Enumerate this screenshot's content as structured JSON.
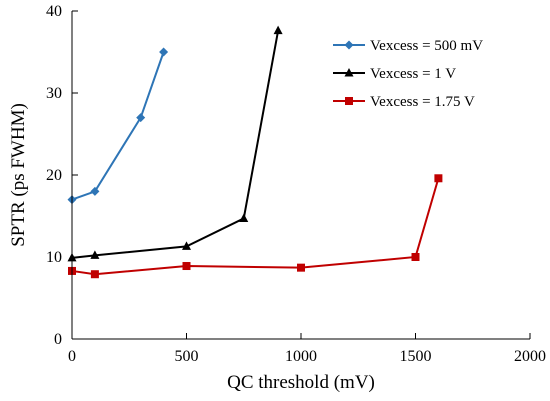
{
  "chart_data": {
    "type": "line",
    "title": "",
    "xlabel": "QC threshold (mV)",
    "ylabel": "SPTR  (ps FWHM)",
    "xlim": [
      0,
      2000
    ],
    "ylim": [
      0,
      40
    ],
    "x_ticks": [
      0,
      500,
      1000,
      1500,
      2000
    ],
    "y_ticks": [
      0,
      10,
      20,
      30,
      40
    ],
    "grid": false,
    "legend_position": "top-right",
    "series": [
      {
        "name": "Vexcess = 500 mV",
        "color": "#2e75b6",
        "marker": "diamond",
        "x": [
          0,
          100,
          300,
          400
        ],
        "y": [
          17.0,
          18.0,
          27.0,
          35.0
        ]
      },
      {
        "name": "Vexcess = 1 V",
        "color": "#000000",
        "marker": "triangle",
        "x": [
          0,
          100,
          500,
          750,
          900
        ],
        "y": [
          9.9,
          10.2,
          11.3,
          14.7,
          37.6
        ]
      },
      {
        "name": "Vexcess = 1.75 V",
        "color": "#c00000",
        "marker": "square",
        "x": [
          0,
          100,
          500,
          1000,
          1500,
          1600
        ],
        "y": [
          8.3,
          7.9,
          8.9,
          8.7,
          10.0,
          19.6
        ]
      }
    ]
  }
}
